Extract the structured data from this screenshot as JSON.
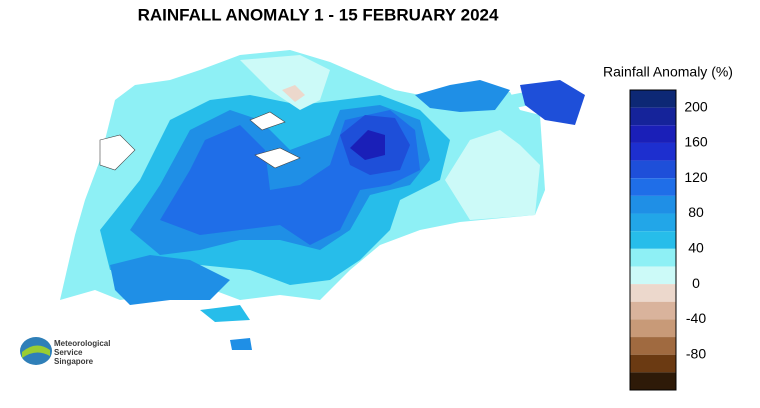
{
  "title": "RAINFALL ANOMALY 1 - 15 FEBRUARY 2024",
  "legend": {
    "title": "Rainfall Anomaly (%)",
    "bounds": [
      220,
      200,
      180,
      160,
      140,
      120,
      100,
      80,
      60,
      40,
      20,
      0,
      -20,
      -40,
      -60,
      -80,
      -100,
      -120
    ],
    "colors": [
      "#0d2875",
      "#15239a",
      "#1a1fb8",
      "#1d2fcf",
      "#1e4fd9",
      "#1f6ee8",
      "#1f8fe6",
      "#22a6e8",
      "#27bdea",
      "#8ef0f5",
      "#ccfaf8",
      "#ecd8cc",
      "#d9b39c",
      "#c89a78",
      "#a06a40",
      "#6b3a12",
      "#2e1a08"
    ],
    "ticks": [
      200,
      160,
      120,
      80,
      40,
      0,
      -40,
      -80
    ]
  },
  "logo": {
    "line1": "Meteorological",
    "line2": "Service",
    "line3": "Singapore"
  }
}
